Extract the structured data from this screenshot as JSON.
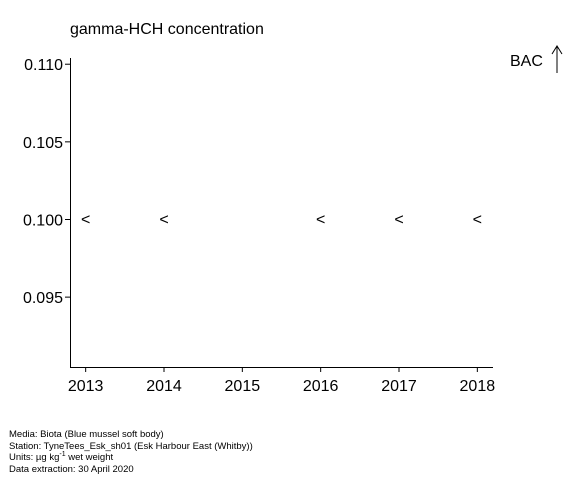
{
  "chart_data": {
    "type": "scatter",
    "title": "gamma-HCH concentration",
    "x_ticks": [
      "2013",
      "2014",
      "2015",
      "2016",
      "2017",
      "2018"
    ],
    "xlim": [
      2012.8,
      2018.2
    ],
    "y_ticks": [
      "0.110",
      "0.105",
      "0.100",
      "0.095"
    ],
    "ylim": [
      0.0905,
      0.1104
    ],
    "marker_symbol": "<",
    "points": [
      {
        "x": 2013,
        "y": 0.1,
        "marker": "<"
      },
      {
        "x": 2014,
        "y": 0.1,
        "marker": "<"
      },
      {
        "x": 2016,
        "y": 0.1,
        "marker": "<"
      },
      {
        "x": 2017,
        "y": 0.1,
        "marker": "<"
      },
      {
        "x": 2018,
        "y": 0.1,
        "marker": "<"
      }
    ],
    "annotation": {
      "label": "BAC",
      "arrow": "up"
    },
    "grid": false
  },
  "footer": {
    "media": "Media: Biota (Blue mussel soft body)",
    "station": "Station: TyneTees_Esk_sh01 (Esk Harbour East (Whitby))",
    "units_prefix": "Units:  µg kg",
    "units_sup": "-1",
    "units_suffix": " wet weight",
    "extraction": "Data extraction: 30 April 2020"
  }
}
